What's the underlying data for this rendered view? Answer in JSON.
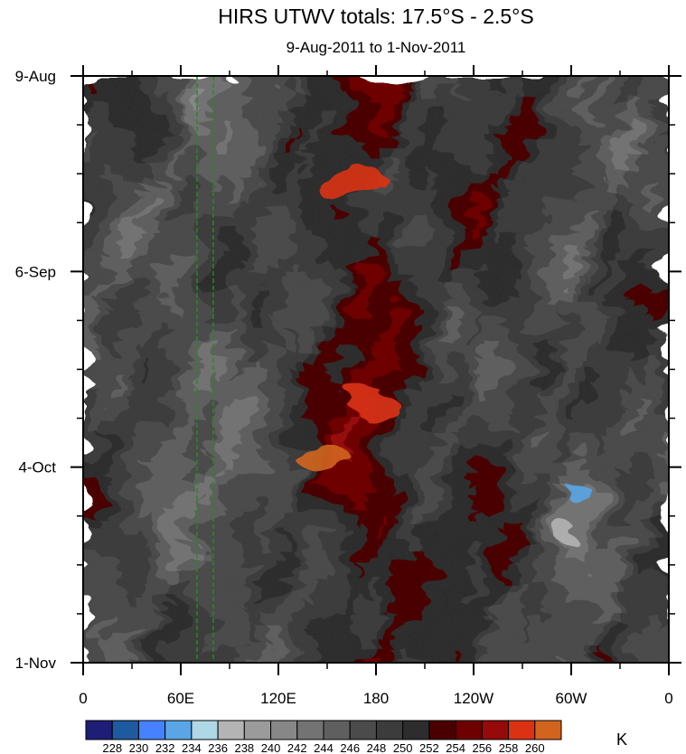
{
  "chart_data": {
    "type": "heatmap",
    "title": "HIRS UTWV totals: 17.5°S - 2.5°S",
    "subtitle": "9-Aug-2011 to 1-Nov-2011",
    "x_ticks": [
      "0",
      "60E",
      "120E",
      "180",
      "120W",
      "60W",
      "0"
    ],
    "x_tick_values": [
      0,
      60,
      120,
      180,
      240,
      300,
      360
    ],
    "xlim": [
      0,
      360
    ],
    "y_ticks": [
      "9-Aug",
      "6-Sep",
      "4-Oct",
      "1-Nov"
    ],
    "y_tick_values": [
      "2011-08-09",
      "2011-09-06",
      "2011-10-04",
      "2011-11-01"
    ],
    "ylim": [
      "2011-08-09",
      "2011-11-01"
    ],
    "y_reversed": true,
    "colorbar": {
      "levels": [
        "228",
        "230",
        "232",
        "234",
        "236",
        "238",
        "240",
        "242",
        "244",
        "246",
        "248",
        "250",
        "252",
        "254",
        "256",
        "258",
        "260"
      ],
      "colors": [
        "#1e1e78",
        "#1e5aa0",
        "#4682ff",
        "#5aa5e6",
        "#afd7e6",
        "#b4b4b4",
        "#9b9b9b",
        "#878787",
        "#737373",
        "#5f5f5f",
        "#4b4b4b",
        "#3c3c3c",
        "#2d2d2d",
        "#4b0000",
        "#6e0000",
        "#960a0a",
        "#dc3214",
        "#d2641e"
      ],
      "unit": "K",
      "orientation": "horizontal",
      "position": "bottom"
    },
    "regions": [
      {
        "label": "warm",
        "lon": 170,
        "date": "2011-08-24",
        "value": 258
      },
      {
        "label": "warm",
        "lon": 175,
        "date": "2011-09-25",
        "value": 258
      },
      {
        "label": "warm",
        "lon": 145,
        "date": "2011-10-02",
        "value": 260
      },
      {
        "label": "cold",
        "lon": 300,
        "date": "2011-10-13",
        "value": 236
      },
      {
        "label": "cold",
        "lon": 298,
        "date": "2011-10-08",
        "value": 232
      }
    ],
    "overlay": {
      "type": "vertical-dashed-lines",
      "color": "#228b22",
      "lon": [
        70,
        80
      ]
    },
    "grid": false,
    "legend": "none"
  }
}
